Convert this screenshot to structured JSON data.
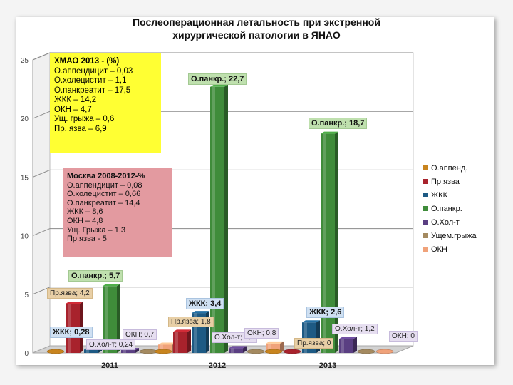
{
  "chart_data": {
    "type": "bar",
    "title_line1": "Послеоперационная   летальность   при  экстренной",
    "title_line2": "хирургической  патологии в ЯНАО",
    "categories": [
      "2011",
      "2012",
      "2013"
    ],
    "ylim": [
      0,
      25
    ],
    "yticks": [
      "0",
      "5",
      "10",
      "15",
      "20",
      "25"
    ],
    "series": [
      {
        "name": "О.аппенд.",
        "color": "#c8841e",
        "values": [
          0,
          0,
          0
        ]
      },
      {
        "name": "Пр.язва",
        "color": "#a8222c",
        "values": [
          4.2,
          1.8,
          0
        ]
      },
      {
        "name": "ЖКК",
        "color": "#1d5a84",
        "values": [
          0.28,
          3.4,
          2.6
        ]
      },
      {
        "name": "О.панкр.",
        "color": "#3f8c3a",
        "values": [
          5.7,
          22.7,
          18.7
        ]
      },
      {
        "name": "О.Хол-т",
        "color": "#5a3f82",
        "values": [
          0.24,
          0.4,
          1.2
        ]
      },
      {
        "name": "Ущем.грыжа",
        "color": "#a48a60",
        "values": [
          0,
          0,
          0
        ]
      },
      {
        "name": "ОКН",
        "color": "#f0a27a",
        "values": [
          0.7,
          0.8,
          0
        ]
      }
    ],
    "data_labels": [
      {
        "text": "Пр.язва; 4,2",
        "style": "tan"
      },
      {
        "text": "О.панкр.; 5,7",
        "style": "green"
      },
      {
        "text": "ЖКК; 0,28",
        "style": "blue"
      },
      {
        "text": "О.Хол-т; 0,24",
        "style": "lav"
      },
      {
        "text": "ОКН; 0,7",
        "style": "lav"
      },
      {
        "text": "О.панкр.; 22,7",
        "style": "green"
      },
      {
        "text": "ЖКК; 3,4",
        "style": "blue"
      },
      {
        "text": "Пр.язва; 1,8",
        "style": "tan"
      },
      {
        "text": "О.Хол-т; 0,4",
        "style": "lav"
      },
      {
        "text": "ОКН; 0,8",
        "style": "lav"
      },
      {
        "text": "О.панкр.; 18,7",
        "style": "green"
      },
      {
        "text": "ЖКК; 2,6",
        "style": "blue"
      },
      {
        "text": "О.Хол-т; 1,2",
        "style": "lav"
      },
      {
        "text": "Пр.язва; 0",
        "style": "tan"
      },
      {
        "text": "ОКН; 0",
        "style": "lav"
      }
    ],
    "legend_position": "right",
    "grid": true
  },
  "yanao_box": {
    "heading": "ХМАО 2013 -  (%)",
    "lines": [
      "О.аппендицит – 0,03",
      "О.холецистит – 1,1",
      "О.панкреатит – 17,5",
      "ЖКК – 14,2",
      "ОКН – 4,7",
      "Ущ. грыжа – 0,6",
      "Пр. язва – 6,9"
    ]
  },
  "moscow_box": {
    "heading": "Москва 2008-2012-%",
    "lines": [
      "О.аппендицит – 0,08",
      "О.холецистит – 0,66",
      "О.панкреатит – 14,4",
      "ЖКК – 8,6",
      "ОКН – 4,8",
      "Ущ. Грыжа – 1,3",
      "Пр.язва - 5"
    ]
  }
}
